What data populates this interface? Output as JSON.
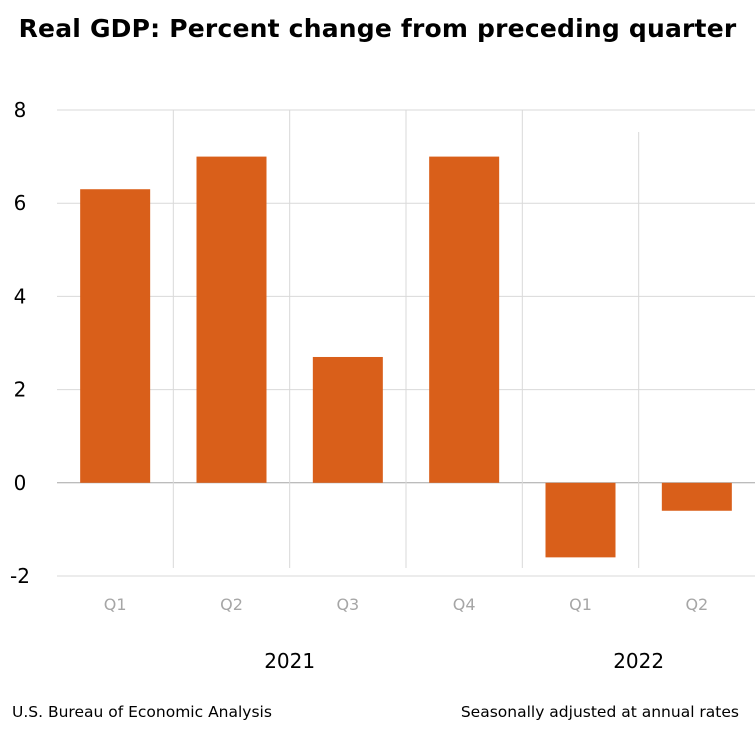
{
  "title": "Real GDP:  Percent change from preceding quarter",
  "footer": {
    "source": "U.S. Bureau of Economic Analysis",
    "note": "Seasonally adjusted at annual rates"
  },
  "colors": {
    "bar": "#d95f1a",
    "grid": "#d9d9d9",
    "zero_line": "#a6a6a6"
  },
  "chart_data": {
    "type": "bar",
    "title": "Real GDP:  Percent change from preceding quarter",
    "categories": [
      "Q1",
      "Q2",
      "Q3",
      "Q4",
      "Q1",
      "Q2"
    ],
    "groups": [
      {
        "label": "2021",
        "categories": [
          "Q1",
          "Q2",
          "Q3",
          "Q4"
        ]
      },
      {
        "label": "2022",
        "categories": [
          "Q1",
          "Q2"
        ]
      }
    ],
    "values": [
      6.3,
      7.0,
      2.7,
      7.0,
      -1.6,
      -0.6
    ],
    "ylim": [
      -2,
      8
    ],
    "yticks": [
      -2,
      0,
      2,
      4,
      6,
      8
    ],
    "grid": true
  }
}
